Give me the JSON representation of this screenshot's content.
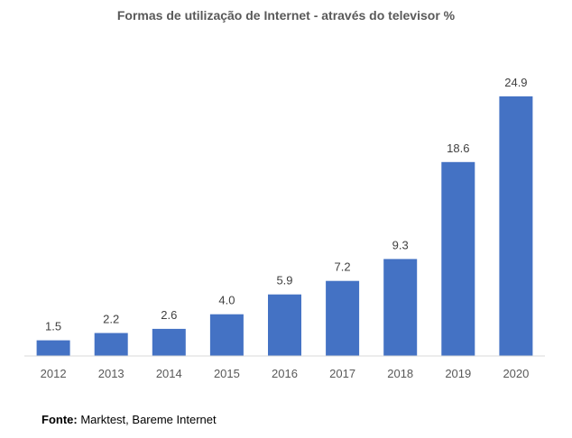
{
  "chart_data": {
    "type": "bar",
    "title": "Formas de utilização de Internet - através do televisor %",
    "categories": [
      "2012",
      "2013",
      "2014",
      "2015",
      "2016",
      "2017",
      "2018",
      "2019",
      "2020"
    ],
    "values": [
      1.5,
      2.2,
      2.6,
      4.0,
      5.9,
      7.2,
      9.3,
      18.6,
      24.9
    ],
    "value_labels": [
      "1.5",
      "2.2",
      "2.6",
      "4.0",
      "5.9",
      "7.2",
      "9.3",
      "18.6",
      "24.9"
    ],
    "xlabel": "",
    "ylabel": "",
    "ylim": [
      0,
      25
    ],
    "grid": false,
    "legend": "none",
    "bar_color": "#4472C4"
  },
  "source": {
    "label": "Fonte:",
    "text": " Marktest, Bareme Internet"
  }
}
